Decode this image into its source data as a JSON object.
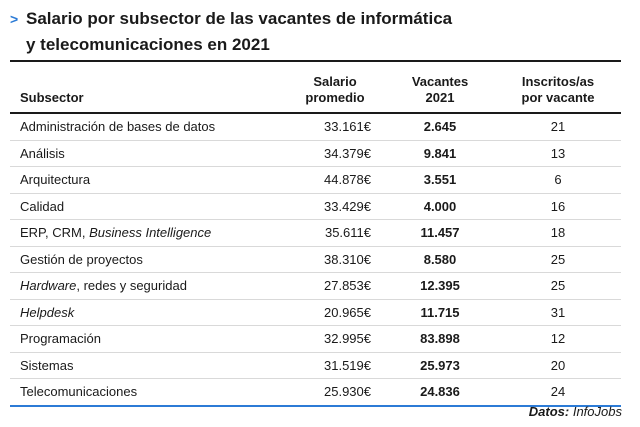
{
  "title": {
    "marker": ">",
    "line1": "Salario por subsector de las vacantes de informática",
    "line2": "y telecomunicaciones en 2021"
  },
  "chart_data": {
    "type": "table",
    "columns": [
      {
        "key": "subsector",
        "label": "Subsector"
      },
      {
        "key": "salario",
        "label_line1": "Salario",
        "label_line2": "promedio"
      },
      {
        "key": "vacantes",
        "label_line1": "Vacantes",
        "label_line2": "2021"
      },
      {
        "key": "inscritos",
        "label_line1": "Inscritos/as",
        "label_line2": "por vacante"
      }
    ],
    "rows": [
      {
        "subsector": "Administración de bases de datos",
        "salario": "33.161€",
        "vacantes": "2.645",
        "inscritos": "21"
      },
      {
        "subsector": "Análisis",
        "salario": "34.379€",
        "vacantes": "9.841",
        "inscritos": "13"
      },
      {
        "subsector": "Arquitectura",
        "salario": "44.878€",
        "vacantes": "3.551",
        "inscritos": "6"
      },
      {
        "subsector": "Calidad",
        "salario": "33.429€",
        "vacantes": "4.000",
        "inscritos": "16"
      },
      {
        "subsector_parts": [
          {
            "text": "ERP, CRM, ",
            "italic": false
          },
          {
            "text": "Business Intelligence",
            "italic": true
          }
        ],
        "salario": "35.611€",
        "vacantes": "11.457",
        "inscritos": "18"
      },
      {
        "subsector": "Gestión de proyectos",
        "salario": "38.310€",
        "vacantes": "8.580",
        "inscritos": "25"
      },
      {
        "subsector_parts": [
          {
            "text": "Hardware",
            "italic": true
          },
          {
            "text": ", redes y seguridad",
            "italic": false
          }
        ],
        "salario": "27.853€",
        "vacantes": "12.395",
        "inscritos": "25"
      },
      {
        "subsector_parts": [
          {
            "text": "Helpdesk",
            "italic": true
          }
        ],
        "salario": "20.965€",
        "vacantes": "11.715",
        "inscritos": "31"
      },
      {
        "subsector": "Programación",
        "salario": "32.995€",
        "vacantes": "83.898",
        "inscritos": "12"
      },
      {
        "subsector": "Sistemas",
        "salario": "31.519€",
        "vacantes": "25.973",
        "inscritos": "20"
      },
      {
        "subsector": "Telecomunicaciones",
        "salario": "25.930€",
        "vacantes": "24.836",
        "inscritos": "24"
      }
    ]
  },
  "source": {
    "label": "Datos:",
    "value": "InfoJobs"
  },
  "colors": {
    "accent": "#2c7bd6",
    "text": "#1a1a1a",
    "row_divider": "#d9d9d9"
  }
}
